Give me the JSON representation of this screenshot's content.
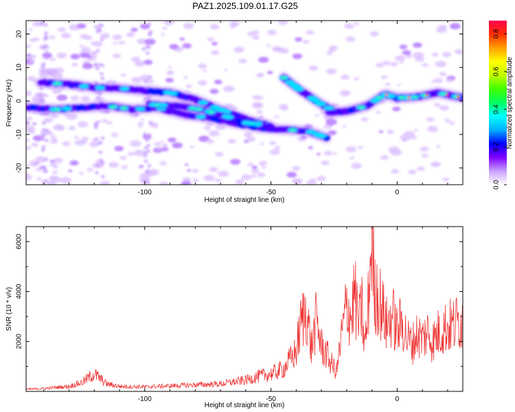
{
  "title": "PAZ1.2025.109.01.17.G25",
  "chart_data": [
    {
      "type": "heatmap",
      "xlabel": "Height of straight line (km)",
      "ylabel": "Frequency (Hz)",
      "xlim": [
        -147,
        26
      ],
      "ylim": [
        -25,
        24
      ],
      "x_ticks": [
        -100,
        -50,
        0
      ],
      "y_ticks": [
        20,
        10,
        0,
        -10,
        -20
      ],
      "colorbar": {
        "label": "Normalized spectral amplitude",
        "range": [
          0,
          0.87
        ],
        "ticks": [
          0.0,
          0.2,
          0.4,
          0.6,
          0.8
        ],
        "colors": [
          "#ffffff",
          "#c8a0ff",
          "#8000ff",
          "#0000ff",
          "#00b0ff",
          "#00ffff",
          "#00ff60",
          "#40ff00",
          "#c0ff00",
          "#ffff00",
          "#ffa000",
          "#ff3000",
          "#ff0050"
        ]
      },
      "ridges": [
        {
          "name": "upper",
          "points": [
            [
              -141,
              5.5
            ],
            [
              -130,
              5
            ],
            [
              -120,
              4
            ],
            [
              -110,
              3.8
            ],
            [
              -100,
              3
            ],
            [
              -90,
              2.5
            ],
            [
              -80,
              0.5
            ],
            [
              -72,
              -2
            ],
            [
              -65,
              -4
            ],
            [
              -58,
              -6
            ],
            [
              -52,
              -7
            ]
          ]
        },
        {
          "name": "lower",
          "points": [
            [
              -146,
              -2
            ],
            [
              -135,
              -2.5
            ],
            [
              -125,
              -2
            ],
            [
              -115,
              -1.5
            ],
            [
              -105,
              -2.5
            ],
            [
              -95,
              -2
            ],
            [
              -85,
              -4
            ],
            [
              -75,
              -5
            ],
            [
              -65,
              -6.5
            ],
            [
              -55,
              -8
            ],
            [
              -45,
              -8.5
            ],
            [
              -35,
              -9
            ],
            [
              -28,
              -11
            ]
          ]
        },
        {
          "name": "mid",
          "points": [
            [
              -98,
              -1
            ],
            [
              -88,
              -1.5
            ],
            [
              -78,
              -2.5
            ],
            [
              -70,
              -4
            ],
            [
              -60,
              -6.5
            ],
            [
              -50,
              -7.5
            ]
          ]
        },
        {
          "name": "branch",
          "points": [
            [
              -45,
              7
            ],
            [
              -38,
              3
            ],
            [
              -30,
              -1
            ],
            [
              -25,
              -3
            ]
          ]
        },
        {
          "name": "rising",
          "points": [
            [
              -27,
              -3.5
            ],
            [
              -20,
              -3
            ],
            [
              -12,
              -1.5
            ],
            [
              -5,
              2
            ],
            [
              0,
              1
            ],
            [
              5,
              1
            ],
            [
              10,
              1.5
            ],
            [
              16,
              2.5
            ],
            [
              22,
              1.5
            ],
            [
              26,
              1
            ]
          ]
        }
      ]
    },
    {
      "type": "line",
      "xlabel": "Height of straight line (km)",
      "ylabel": "SNR (10 * v/v)",
      "xlim": [
        -147,
        26
      ],
      "ylim": [
        0,
        6600
      ],
      "x_ticks": [
        -100,
        -50,
        0
      ],
      "y_ticks": [
        2000,
        4000,
        6000
      ],
      "color": "#ee3333",
      "series": [
        {
          "x": [
            -147,
            -140,
            -130,
            -125,
            -120,
            -115,
            -110,
            -100,
            -90,
            -80,
            -70,
            -60,
            -55,
            -50,
            -45,
            -40,
            -38,
            -36,
            -34,
            -32,
            -30,
            -28,
            -26,
            -24,
            -22,
            -20,
            -18,
            -17,
            -16,
            -15,
            -14,
            -13,
            -12,
            -11,
            -10,
            -9,
            -8,
            -6,
            -4,
            -2,
            0,
            2,
            4,
            6,
            8,
            10,
            12,
            14,
            16,
            18,
            20,
            22,
            24,
            26
          ],
          "y": [
            80,
            120,
            200,
            350,
            700,
            300,
            200,
            180,
            220,
            260,
            300,
            450,
            600,
            700,
            900,
            1600,
            2800,
            3300,
            1700,
            2900,
            1800,
            1500,
            1100,
            800,
            2200,
            3500,
            2900,
            4100,
            3200,
            2700,
            3400,
            1800,
            2500,
            4300,
            6500,
            3800,
            4000,
            3300,
            2600,
            3100,
            2400,
            2800,
            2100,
            1900,
            2300,
            2100,
            2400,
            2000,
            2300,
            2500,
            2600,
            2600,
            2800,
            2900
          ]
        }
      ]
    }
  ]
}
